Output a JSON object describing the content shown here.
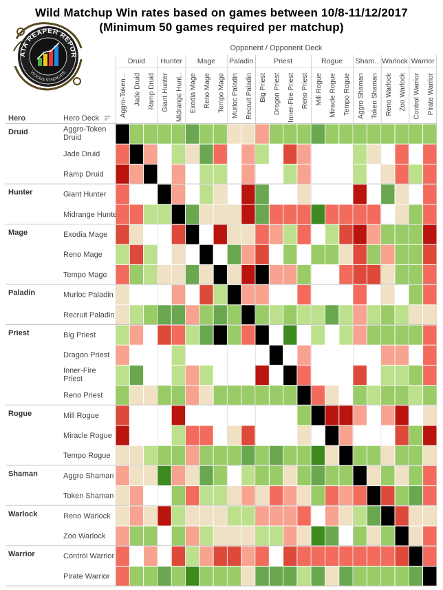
{
  "title": {
    "line1": "Wild Matchup Win rates based on games between 10/8-11/12/2017",
    "line2": "(Minimum 50 games required per matchup)"
  },
  "logo": {
    "text_top": "DATA REAPER REPORT",
    "text_bottom": "VICIOUS SYNDICATE"
  },
  "axis": {
    "opponent_label": "Opponent  /  Opponent Deck",
    "row_header_hero": "Hero",
    "row_header_deck": "Hero Deck"
  },
  "chart_data": {
    "type": "heatmap",
    "title": "Wild Matchup Win rates based on games between 10/8-11/12/2017",
    "subtitle": "(Minimum 50 games required per matchup)",
    "color_scale": {
      "0": "#ffffff",
      "1": "#f0e0c4",
      "2": "#bde08c",
      "3": "#99cc66",
      "4": "#69a84f",
      "5": "#3d8a1f",
      "-2": "#f8a290",
      "-3": "#f26b5c",
      "-4": "#de4a3a",
      "-5": "#b9140d",
      "9": "#000000"
    },
    "value_legend": "0 = no data (fewer than 50 games), 1 = even, positive = favored (green), negative = unfavored (red), 9 = mirror match",
    "classes": [
      {
        "name": "Druid",
        "decks": [
          "Aggro-Token Druid",
          "Jade Druid",
          "Ramp Druid"
        ],
        "col_decks": [
          "Aggro-Token ..",
          "Jade Druid",
          "Ramp Druid"
        ]
      },
      {
        "name": "Hunter",
        "decks": [
          "Giant Hunter",
          "Midrange Hunter"
        ],
        "col_decks": [
          "Giant Hunter",
          "Midrange Hunt.."
        ]
      },
      {
        "name": "Mage",
        "decks": [
          "Exodia Mage",
          "Reno Mage",
          "Tempo Mage"
        ],
        "col_decks": [
          "Exodia Mage",
          "Reno Mage",
          "Tempo Mage"
        ]
      },
      {
        "name": "Paladin",
        "decks": [
          "Murloc Paladin",
          "Recruit Paladin"
        ],
        "col_decks": [
          "Murloc Paladin",
          "Recruit Paladin"
        ]
      },
      {
        "name": "Priest",
        "decks": [
          "Big Priest",
          "Dragon Priest",
          "Inner-Fire Priest",
          "Reno Priest"
        ],
        "col_decks": [
          "Big Priest",
          "Dragon Priest",
          "Inner-Fire Priest",
          "Reno Priest"
        ]
      },
      {
        "name": "Rogue",
        "decks": [
          "Mill Rogue",
          "Miracle Rogue",
          "Tempo Rogue"
        ],
        "col_decks": [
          "Mill Rogue",
          "Miracle Rogue",
          "Tempo Rogue"
        ]
      },
      {
        "name": "Shaman",
        "decks": [
          "Aggro Shaman",
          "Token Shaman"
        ],
        "col_decks": [
          "Aggro Shaman",
          "Token Shaman"
        ],
        "col_label": "Sham.."
      },
      {
        "name": "Warlock",
        "decks": [
          "Reno Warlock",
          "Zoo Warlock"
        ],
        "col_decks": [
          "Reno Warlock",
          "Zoo Warlock"
        ]
      },
      {
        "name": "Warrior",
        "decks": [
          "Control Warrior",
          "Pirate Warrior"
        ],
        "col_decks": [
          "Control Warrior",
          "Pirate Warrior"
        ]
      }
    ],
    "matrix": [
      [
        9,
        3,
        3,
        3,
        3,
        4,
        3,
        3,
        1,
        1,
        -2,
        3,
        3,
        3,
        4,
        3,
        3,
        3,
        3,
        3,
        3,
        3,
        3
      ],
      [
        -3,
        9,
        -2,
        0,
        2,
        1,
        4,
        -3,
        0,
        -2,
        2,
        0,
        -4,
        -2,
        0,
        0,
        0,
        2,
        1,
        0,
        -3,
        0,
        -3
      ],
      [
        -5,
        -2,
        9,
        0,
        -2,
        0,
        2,
        2,
        0,
        -2,
        0,
        0,
        2,
        -2,
        0,
        0,
        0,
        2,
        0,
        1,
        -3,
        2,
        -3
      ],
      [
        -3,
        0,
        0,
        9,
        -2,
        0,
        2,
        1,
        0,
        -5,
        4,
        0,
        0,
        1,
        0,
        0,
        0,
        -5,
        0,
        4,
        1,
        0,
        -3
      ],
      [
        -3,
        -3,
        2,
        2,
        9,
        4,
        1,
        1,
        1,
        -5,
        4,
        -3,
        -3,
        -3,
        5,
        -3,
        -3,
        -3,
        -3,
        0,
        1,
        3,
        -3
      ],
      [
        -4,
        1,
        0,
        0,
        -4,
        9,
        0,
        -5,
        1,
        1,
        -3,
        -2,
        2,
        -3,
        0,
        2,
        -4,
        -5,
        -2,
        3,
        3,
        3,
        -5
      ],
      [
        2,
        -4,
        2,
        0,
        1,
        0,
        9,
        0,
        4,
        -2,
        -4,
        0,
        3,
        0,
        3,
        3,
        1,
        -4,
        3,
        -2,
        3,
        3,
        -4
      ],
      [
        -3,
        3,
        2,
        1,
        1,
        4,
        1,
        9,
        1,
        -5,
        9,
        -2,
        -2,
        3,
        0,
        0,
        -3,
        -4,
        -4,
        1,
        3,
        3,
        -3
      ],
      [
        1,
        0,
        0,
        0,
        -2,
        0,
        -4,
        2,
        9,
        -2,
        -2,
        0,
        0,
        -3,
        0,
        0,
        0,
        -3,
        0,
        1,
        0,
        3,
        -3
      ],
      [
        1,
        2,
        3,
        4,
        4,
        -2,
        3,
        4,
        3,
        9,
        3,
        2,
        3,
        2,
        2,
        4,
        2,
        -2,
        2,
        3,
        2,
        1,
        1
      ],
      [
        2,
        -2,
        0,
        -4,
        -3,
        2,
        4,
        9,
        3,
        -3,
        9,
        0,
        5,
        0,
        2,
        0,
        2,
        -2,
        3,
        3,
        3,
        3,
        -3
      ],
      [
        -2,
        0,
        0,
        0,
        2,
        0,
        0,
        0,
        0,
        0,
        0,
        9,
        0,
        -2,
        0,
        0,
        0,
        0,
        0,
        -2,
        -2,
        0,
        -3
      ],
      [
        2,
        4,
        0,
        0,
        2,
        -2,
        2,
        0,
        0,
        0,
        -5,
        0,
        9,
        -3,
        0,
        0,
        0,
        -4,
        0,
        2,
        2,
        3,
        -3
      ],
      [
        3,
        1,
        1,
        3,
        3,
        -2,
        1,
        3,
        3,
        3,
        3,
        3,
        3,
        9,
        -3,
        1,
        0,
        3,
        2,
        3,
        3,
        2,
        3
      ],
      [
        -4,
        0,
        0,
        0,
        -5,
        0,
        0,
        0,
        0,
        0,
        0,
        0,
        0,
        3,
        9,
        -5,
        -5,
        -2,
        0,
        -2,
        -5,
        0,
        1
      ],
      [
        -5,
        0,
        0,
        0,
        2,
        -3,
        -3,
        0,
        1,
        -4,
        0,
        0,
        0,
        1,
        0,
        9,
        -2,
        0,
        0,
        0,
        -4,
        3,
        -5
      ],
      [
        1,
        1,
        2,
        3,
        3,
        -2,
        3,
        3,
        3,
        4,
        3,
        4,
        3,
        3,
        5,
        1,
        9,
        3,
        3,
        1,
        3,
        3,
        1
      ],
      [
        -2,
        1,
        1,
        5,
        -2,
        1,
        4,
        3,
        0,
        2,
        3,
        3,
        1,
        3,
        4,
        3,
        3,
        9,
        1,
        3,
        1,
        3,
        -3
      ],
      [
        1,
        -2,
        0,
        0,
        3,
        -3,
        2,
        2,
        1,
        -2,
        1,
        -3,
        -2,
        1,
        3,
        -3,
        -2,
        -3,
        9,
        -4,
        3,
        4,
        -3
      ],
      [
        1,
        -2,
        1,
        -5,
        2,
        1,
        1,
        1,
        2,
        2,
        -2,
        -2,
        -2,
        -3,
        0,
        -2,
        1,
        2,
        4,
        9,
        -4,
        1,
        1
      ],
      [
        -2,
        3,
        3,
        0,
        3,
        -2,
        2,
        1,
        1,
        1,
        2,
        2,
        -2,
        1,
        5,
        4,
        0,
        3,
        1,
        3,
        9,
        1,
        -3
      ],
      [
        -3,
        0,
        -2,
        0,
        -4,
        2,
        -2,
        -4,
        -4,
        -2,
        -3,
        0,
        -4,
        -3,
        -3,
        -3,
        -3,
        -3,
        -3,
        -3,
        -4,
        9,
        -3
      ],
      [
        -3,
        3,
        3,
        4,
        3,
        5,
        3,
        3,
        3,
        1,
        4,
        4,
        4,
        2,
        4,
        1,
        4,
        3,
        3,
        3,
        3,
        4,
        9
      ]
    ]
  }
}
